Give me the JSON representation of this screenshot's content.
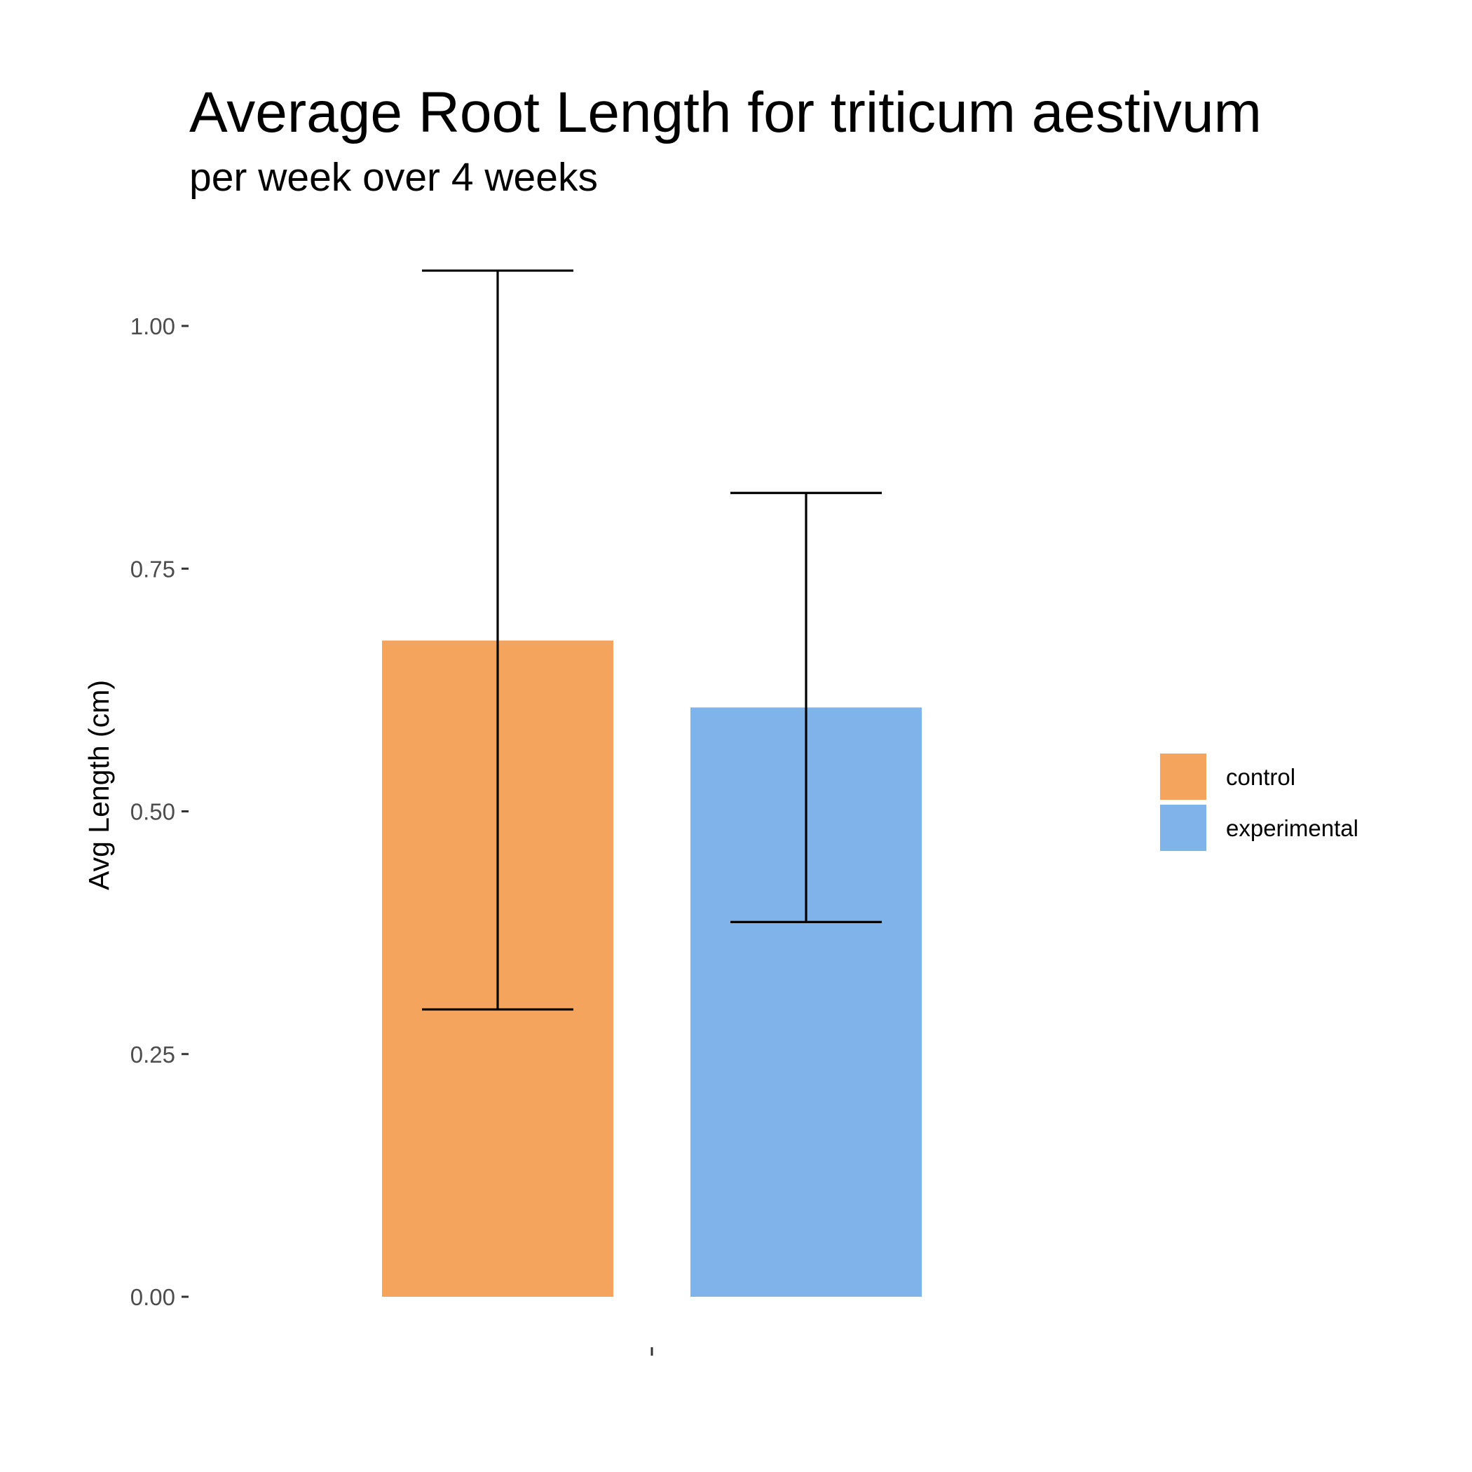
{
  "chart_data": {
    "type": "bar",
    "title": "Average Root Length for triticum aestivum",
    "subtitle": "per week over 4 weeks",
    "xlabel": "",
    "ylabel": "Avg Length (cm)",
    "categories": [
      ""
    ],
    "ylim": [
      0,
      1.07
    ],
    "yticks": [
      0.0,
      0.25,
      0.5,
      0.75,
      1.0
    ],
    "ytick_labels": [
      "0.00",
      "0.25",
      "0.50",
      "0.75",
      "1.00"
    ],
    "grid": false,
    "legend_position": "right",
    "series": [
      {
        "name": "control",
        "color": "#F5A45E",
        "values": [
          0.676
        ],
        "error_low": [
          0.296
        ],
        "error_high": [
          1.057
        ]
      },
      {
        "name": "experimental",
        "color": "#7FB3E9",
        "values": [
          0.607
        ],
        "error_low": [
          0.386
        ],
        "error_high": [
          0.828
        ]
      }
    ]
  }
}
